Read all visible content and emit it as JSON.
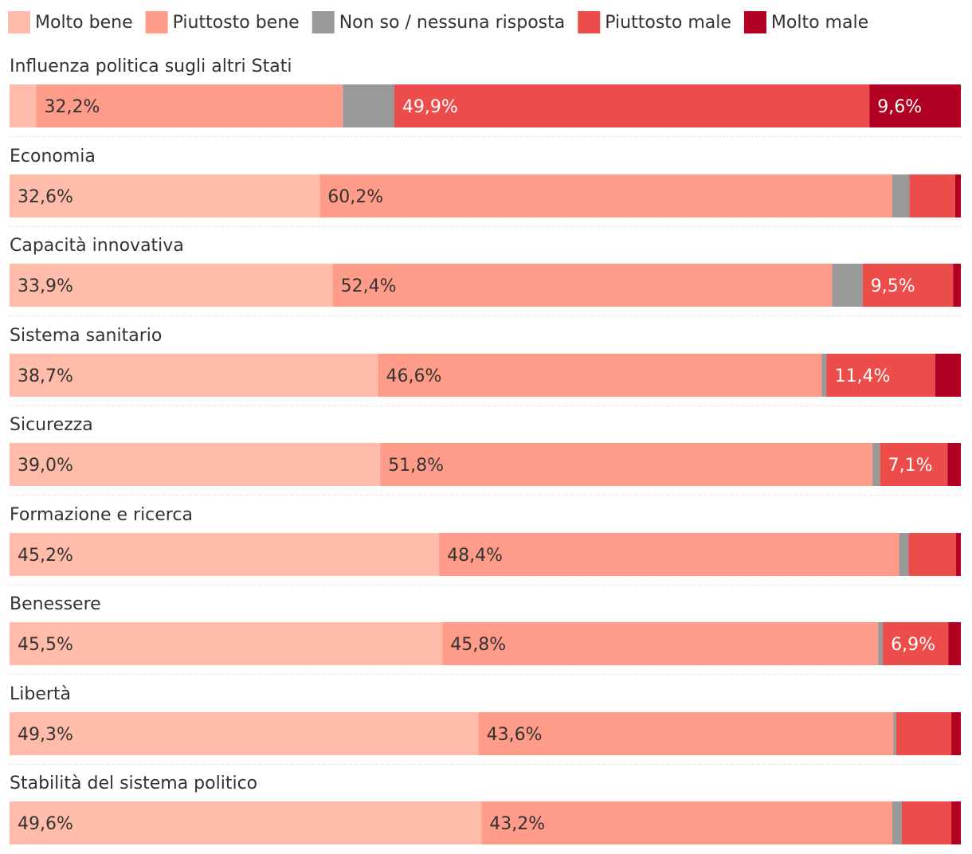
{
  "chart_data": {
    "type": "bar",
    "orientation": "horizontal",
    "stacked": true,
    "unit": "%",
    "legend_position": "top-left",
    "series": [
      {
        "name": "Molto bene",
        "color": "#ffbcaa",
        "label_color": "#333333"
      },
      {
        "name": "Piuttosto bene",
        "color": "#ff9b89",
        "label_color": "#333333"
      },
      {
        "name": "Non so / nessuna risposta",
        "color": "#999999",
        "label_color": "#333333"
      },
      {
        "name": "Piuttosto male",
        "color": "#ec4d4b",
        "label_color": "#ffffff"
      },
      {
        "name": "Molto male",
        "color": "#b20022",
        "label_color": "#ffffff"
      }
    ],
    "categories": [
      {
        "name": "Influenza politica sugli altri Stati",
        "values": [
          2.8,
          32.2,
          5.4,
          49.9,
          9.6
        ],
        "labels": [
          "",
          "32,2%",
          "",
          "49,9%",
          "9,6%"
        ]
      },
      {
        "name": "Economia",
        "values": [
          32.6,
          60.2,
          1.8,
          4.8,
          0.6
        ],
        "labels": [
          "32,6%",
          "60,2%",
          "",
          "",
          ""
        ]
      },
      {
        "name": "Capacità innovativa",
        "values": [
          33.9,
          52.4,
          3.2,
          9.5,
          0.8
        ],
        "labels": [
          "33,9%",
          "52,4%",
          "",
          "9,5%",
          ""
        ]
      },
      {
        "name": "Sistema sanitario",
        "values": [
          38.7,
          46.6,
          0.5,
          11.4,
          2.7
        ],
        "labels": [
          "38,7%",
          "46,6%",
          "",
          "11,4%",
          ""
        ]
      },
      {
        "name": "Sicurezza",
        "values": [
          39.0,
          51.8,
          0.8,
          7.1,
          1.4
        ],
        "labels": [
          "39,0%",
          "51,8%",
          "",
          "7,1%",
          ""
        ]
      },
      {
        "name": "Formazione e ricerca",
        "values": [
          45.2,
          48.4,
          1.0,
          5.0,
          0.5
        ],
        "labels": [
          "45,2%",
          "48,4%",
          "",
          "",
          ""
        ]
      },
      {
        "name": "Benessere",
        "values": [
          45.5,
          45.8,
          0.5,
          6.9,
          1.3
        ],
        "labels": [
          "45,5%",
          "45,8%",
          "",
          "6,9%",
          ""
        ]
      },
      {
        "name": "Libertà",
        "values": [
          49.3,
          43.6,
          0.3,
          5.8,
          1.0
        ],
        "labels": [
          "49,3%",
          "43,6%",
          "",
          "",
          ""
        ]
      },
      {
        "name": "Stabilità del sistema politico",
        "values": [
          49.6,
          43.2,
          1.0,
          5.2,
          1.0
        ],
        "labels": [
          "49,6%",
          "43,2%",
          "",
          "",
          ""
        ]
      }
    ],
    "xlim": [
      0,
      100
    ]
  }
}
